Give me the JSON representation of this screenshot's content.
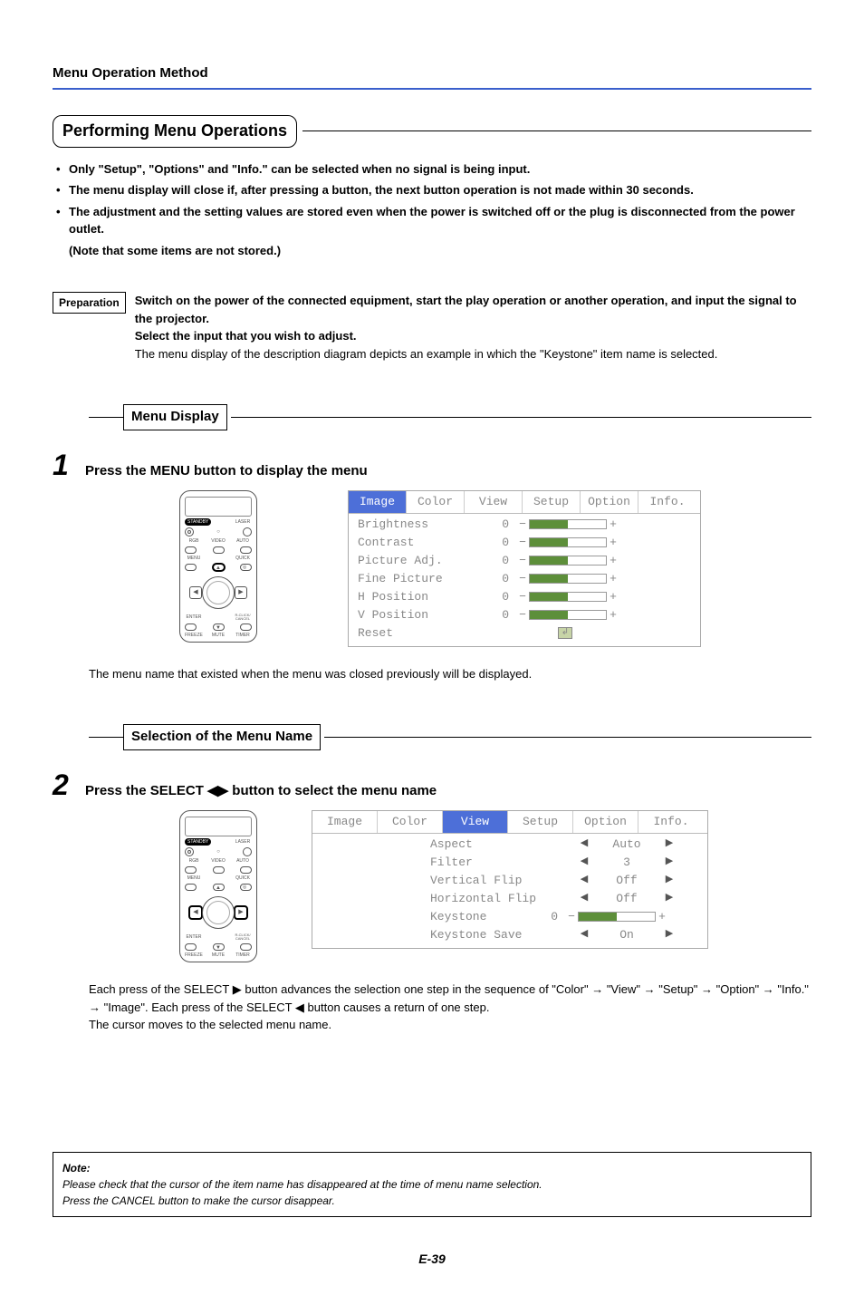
{
  "header": {
    "title": "Menu Operation Method"
  },
  "section": {
    "title": "Performing Menu Operations"
  },
  "bullets": [
    "Only \"Setup\", \"Options\" and \"Info.\" can be selected when no signal is being input.",
    "The menu display will close if, after pressing a button, the next button operation is not made within 30 seconds.",
    "The adjustment and the setting values are stored even when the power is switched off or the plug is disconnected from the power outlet."
  ],
  "bullets_sub": "(Note that some items are not stored.)",
  "prep": {
    "label": "Preparation",
    "bold_line": "Switch on the power of the connected equipment, start the play operation or another operation, and input the signal to the projector.",
    "bold_line2": "Select the input that you wish to adjust.",
    "plain_line": "The menu display of the description diagram depicts an example in which the \"Keystone\" item name is selected."
  },
  "step1": {
    "subsection": "Menu Display",
    "num": "1",
    "title": "Press the MENU button to display the menu",
    "body_after": "The menu name that existed when the menu was closed previously will be displayed."
  },
  "step2": {
    "subsection": "Selection of the Menu Name",
    "num": "2",
    "title": "Press the SELECT ◀▶ button to select the menu name",
    "body_after_1": "Each press of the SELECT ▶ button advances the selection one step in the sequence of \"Color\" → \"View\" → \"Setup\" → \"Option\"  → \"Info.\" → \"Image\". Each press of the SELECT ◀ button causes a return of one step.",
    "body_after_2": "The cursor moves to the selected menu name."
  },
  "osd1": {
    "tabs": [
      "Image",
      "Color",
      "View",
      "Setup",
      "Option",
      "Info."
    ],
    "tab_widths": [
      64,
      64,
      64,
      64,
      64,
      64
    ],
    "active_tab": 0,
    "rows": [
      {
        "type": "bar",
        "name": "Brightness",
        "val": "0",
        "fill_pct": 50
      },
      {
        "type": "bar",
        "name": "Contrast",
        "val": "0",
        "fill_pct": 50
      },
      {
        "type": "bar",
        "name": "Picture Adj.",
        "val": "0",
        "fill_pct": 50
      },
      {
        "type": "bar",
        "name": "Fine Picture",
        "val": "0",
        "fill_pct": 50
      },
      {
        "type": "bar",
        "name": "H Position",
        "val": "0",
        "fill_pct": 50
      },
      {
        "type": "bar",
        "name": "V Position",
        "val": "0",
        "fill_pct": 50
      },
      {
        "type": "reset",
        "name": "Reset"
      }
    ],
    "colors": {
      "active_bg": "#4d6fd8",
      "bar_fill": "#5d8f3a",
      "border": "#aaaaaa",
      "text": "#888888"
    }
  },
  "osd2": {
    "tabs": [
      "Image",
      "Color",
      "View",
      "Setup",
      "Option",
      "Info."
    ],
    "tab_widths": [
      72,
      72,
      72,
      72,
      72,
      72
    ],
    "active_tab": 2,
    "rows": [
      {
        "type": "select",
        "name": "Aspect",
        "val": "Auto"
      },
      {
        "type": "select",
        "name": "Filter",
        "val": "3"
      },
      {
        "type": "select",
        "name": "Vertical Flip",
        "val": "Off"
      },
      {
        "type": "select",
        "name": "Horizontal Flip",
        "val": "Off"
      },
      {
        "type": "bar",
        "name": "Keystone",
        "num": "0",
        "fill_pct": 50
      },
      {
        "type": "select",
        "name": "Keystone Save",
        "val": "On"
      }
    ],
    "colors": {
      "active_bg": "#4d6fd8",
      "bar_fill": "#5d8f3a",
      "border": "#aaaaaa",
      "text": "#888888"
    }
  },
  "remote": {
    "labels": {
      "standby": "STANDBY",
      "laser": "LASER",
      "rgb": "RGB",
      "video": "VIDEO",
      "auto": "AUTO",
      "menu": "MENU",
      "quick": "QUICK",
      "enter": "ENTER",
      "rclick": "R-CLICK/\nCANCEL",
      "freeze": "FREEZE",
      "mute": "MUTE",
      "timer": "TIMER"
    }
  },
  "note": {
    "title": "Note:",
    "line1": "Please check that the cursor of the item name has disappeared at the time of menu name selection.",
    "line2": "Press the CANCEL button to make the cursor disappear."
  },
  "page_num": "E-39",
  "palette": {
    "header_rule": "#3a5fcc",
    "text": "#000000",
    "osd_green": "#5d8f3a",
    "osd_blue": "#4d6fd8"
  }
}
